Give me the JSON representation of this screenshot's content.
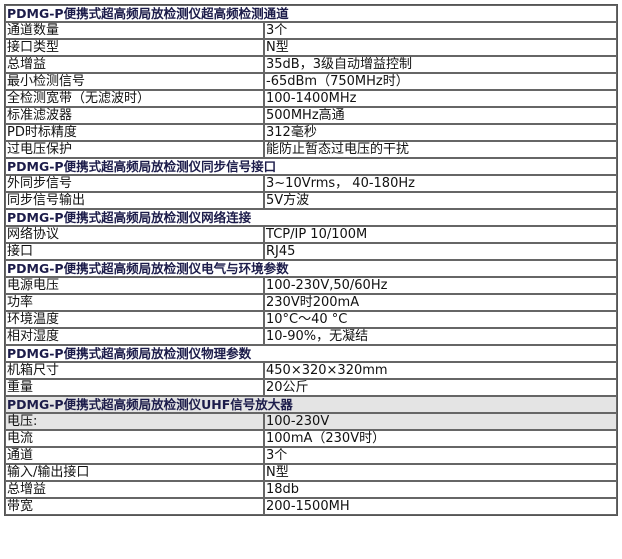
{
  "sections": [
    {
      "title": "PDMG-P便携式超高频局放检测仪超高频检测通道",
      "rows": [
        {
          "k": "通道数量",
          "v": "3个"
        },
        {
          "k": "接口类型",
          "v": "N型"
        },
        {
          "k": "总增益",
          "v": "35dB，3级自动增益控制"
        },
        {
          "k": "最小检测信号",
          "v": "-65dBm（750MHz时）"
        },
        {
          "k": "全检测宽带（无滤波时）",
          "v": "100-1400MHz"
        },
        {
          "k": "标准滤波器",
          "v": "500MHz高通"
        },
        {
          "k": "PD时标精度",
          "v": "312毫秒"
        },
        {
          "k": "过电压保护",
          "v": "能防止暂态过电压的干扰"
        }
      ]
    },
    {
      "title": "PDMG-P便携式超高频局放检测仪同步信号接口",
      "rows": [
        {
          "k": "外同步信号",
          "v": "3~10Vrms，  40-180Hz"
        },
        {
          "k": "同步信号输出",
          "v": "5V方波"
        }
      ]
    },
    {
      "title": "PDMG-P便携式超高频局放检测仪网络连接",
      "rows": [
        {
          "k": "网络协议",
          "v": "TCP/IP   10/100M"
        },
        {
          "k": "接口",
          "v": "RJ45"
        }
      ]
    },
    {
      "title": "PDMG-P便携式超高频局放检测仪电气与环境参数",
      "rows": [
        {
          "k": "电源电压",
          "v": "100-230V,50/60Hz"
        },
        {
          "k": "功率",
          "v": "230V时200mA"
        },
        {
          "k": "环境温度",
          "v": "10°C～40 °C"
        },
        {
          "k": "相对湿度",
          "v": "10-90%，无凝结"
        }
      ]
    },
    {
      "title": "PDMG-P便携式超高频局放检测仪物理参数",
      "rows": [
        {
          "k": "机箱尺寸",
          "v": "450×320×320mm"
        },
        {
          "k": "重量",
          "v": "20公斤"
        }
      ]
    },
    {
      "title": "PDMG-P便携式超高频局放检测仪UHF信号放大器",
      "rows": [
        {
          "k": "电压:",
          "v": "100-230V"
        },
        {
          "k": "电流",
          "v": "100mA（230V时）"
        },
        {
          "k": "通道",
          "v": "3个"
        },
        {
          "k": "输入/输出接口",
          "v": "N型"
        },
        {
          "k": "总增益",
          "v": "18db"
        },
        {
          "k": "带宽",
          "v": "200-1500MH"
        }
      ]
    }
  ]
}
